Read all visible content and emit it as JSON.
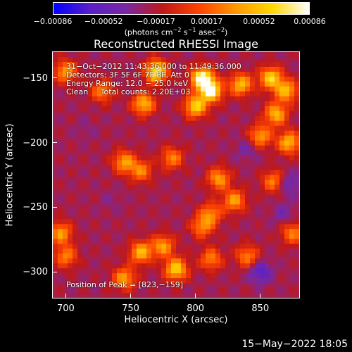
{
  "chart_data": {
    "type": "heatmap",
    "title": "Reconstructed RHESSI Image",
    "xlabel": "Heliocentric X (arcsec)",
    "ylabel": "Heliocentric Y (arcsec)",
    "xlim": [
      690,
      880
    ],
    "ylim": [
      -320,
      -130
    ],
    "xticks": [
      {
        "value": 700,
        "label": "700"
      },
      {
        "value": 750,
        "label": "750"
      },
      {
        "value": 800,
        "label": "800"
      },
      {
        "value": 850,
        "label": "850"
      }
    ],
    "yticks": [
      {
        "value": -150,
        "label": "−150"
      },
      {
        "value": -200,
        "label": "−200"
      },
      {
        "value": -250,
        "label": "−250"
      },
      {
        "value": -300,
        "label": "−300"
      }
    ],
    "colorbar": {
      "range": [
        -0.00086,
        0.00086
      ],
      "ticks": [
        {
          "value": -0.00086,
          "label": "−0.00086"
        },
        {
          "value": -0.00052,
          "label": "−0.00052"
        },
        {
          "value": -0.00017,
          "label": "−0.00017"
        },
        {
          "value": 0.00017,
          "label": "0.00017"
        },
        {
          "value": 0.00052,
          "label": "0.00052"
        },
        {
          "value": 0.00086,
          "label": "0.00086"
        }
      ],
      "label_main": "(photons cm",
      "label_exp1": "−2",
      "label_mid": " s",
      "label_exp2": "−1",
      "label_end": " asec",
      "label_exp3": "−2",
      "label_close": ")",
      "colormap": [
        "#0000ff",
        "#5a1fc8",
        "#7a28a0",
        "#c01818",
        "#ff4400",
        "#ff9900",
        "#ffd800",
        "#ffffff"
      ]
    },
    "bright_sources": [
      {
        "x": 770,
        "y": -145,
        "value": 0.0008
      },
      {
        "x": 805,
        "y": -150,
        "value": 0.00086
      },
      {
        "x": 812,
        "y": -160,
        "value": 0.0008
      },
      {
        "x": 800,
        "y": -172,
        "value": 0.0006
      },
      {
        "x": 760,
        "y": -170,
        "value": 0.0005
      },
      {
        "x": 835,
        "y": -155,
        "value": 0.0005
      },
      {
        "x": 858,
        "y": -150,
        "value": 0.0006
      },
      {
        "x": 870,
        "y": -160,
        "value": 0.0005
      },
      {
        "x": 862,
        "y": -178,
        "value": 0.0005
      },
      {
        "x": 850,
        "y": -195,
        "value": 0.0004
      },
      {
        "x": 872,
        "y": -200,
        "value": 0.0005
      },
      {
        "x": 700,
        "y": -145,
        "value": 0.0004
      },
      {
        "x": 728,
        "y": -160,
        "value": 0.0003
      },
      {
        "x": 745,
        "y": -215,
        "value": 0.0004
      },
      {
        "x": 758,
        "y": -222,
        "value": 0.0003
      },
      {
        "x": 782,
        "y": -212,
        "value": 0.0003
      },
      {
        "x": 818,
        "y": -228,
        "value": 0.0004
      },
      {
        "x": 830,
        "y": -245,
        "value": 0.0004
      },
      {
        "x": 812,
        "y": -255,
        "value": 0.0003
      },
      {
        "x": 805,
        "y": -265,
        "value": 0.0003
      },
      {
        "x": 860,
        "y": -230,
        "value": 0.0003
      },
      {
        "x": 875,
        "y": -270,
        "value": 0.0003
      },
      {
        "x": 696,
        "y": -270,
        "value": 0.0004
      },
      {
        "x": 700,
        "y": -288,
        "value": 0.0003
      },
      {
        "x": 758,
        "y": -285,
        "value": 0.0005
      },
      {
        "x": 775,
        "y": -280,
        "value": 0.0004
      },
      {
        "x": 785,
        "y": -298,
        "value": 0.0006
      },
      {
        "x": 745,
        "y": -305,
        "value": 0.0004
      },
      {
        "x": 812,
        "y": -290,
        "value": 0.0003
      },
      {
        "x": 840,
        "y": -288,
        "value": 0.0003
      }
    ],
    "dim_regions": [
      {
        "x": 850,
        "y": -300,
        "value": -0.0006
      },
      {
        "x": 868,
        "y": -255,
        "value": -0.0004
      },
      {
        "x": 872,
        "y": -232,
        "value": -0.0005
      },
      {
        "x": 840,
        "y": -205,
        "value": -0.0004
      },
      {
        "x": 715,
        "y": -190,
        "value": -0.0003
      },
      {
        "x": 735,
        "y": -245,
        "value": -0.0003
      }
    ]
  },
  "annotations": {
    "time_range": "31−Oct−2012 11:43:36.000 to 11:49:36.000",
    "detectors": "Detectors: 3F 5F 6F 7F 8F, Att 0",
    "energy": "Energy Range: 12.0 − 25.0 keV",
    "method": "Clean     Total counts: 2.20E+03",
    "peak": "Position of Peak = [823,−159]"
  },
  "footer": {
    "timestamp": "15−May−2022 18:05"
  },
  "colors": {
    "background": "#000000",
    "axes": "#ffffff",
    "base_field": "#5a1fc8"
  }
}
